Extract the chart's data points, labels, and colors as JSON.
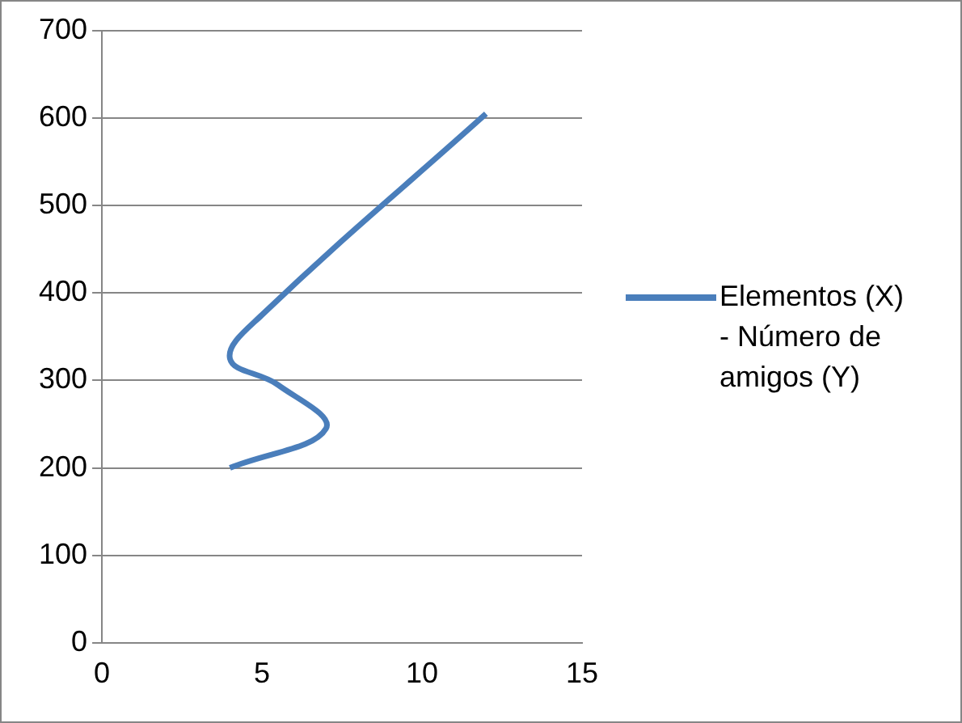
{
  "chart_data": {
    "type": "line",
    "series": [
      {
        "name": "Elementos (X) - Número de amigos (Y)",
        "color": "#4a7ebb",
        "x": [
          4,
          7,
          5.5,
          4,
          5,
          12
        ],
        "values": [
          200,
          245,
          295,
          325,
          375,
          605
        ]
      }
    ],
    "xlim": [
      0,
      15
    ],
    "xticks": [
      0,
      5,
      10,
      15
    ],
    "ylim": [
      0,
      700
    ],
    "yticks": [
      0,
      100,
      200,
      300,
      400,
      500,
      600,
      700
    ],
    "grid": "y",
    "legend": "right",
    "marker": "none"
  }
}
